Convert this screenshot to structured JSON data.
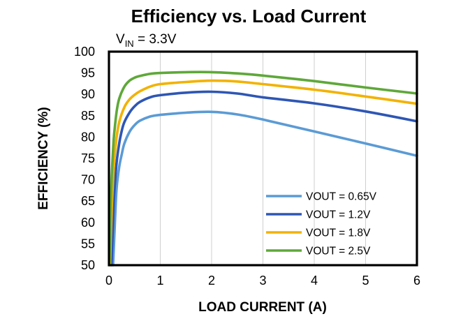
{
  "chart_data": {
    "type": "line",
    "title": "Efficiency vs. Load Current",
    "subtitle": {
      "prefix": "V",
      "subscript": "IN",
      "suffix": " = 3.3V"
    },
    "xlabel": "LOAD CURRENT (A)",
    "ylabel": "EFFICIENCY (%)",
    "xlim": [
      0,
      6
    ],
    "ylim": [
      50,
      100
    ],
    "xticks": [
      "0",
      "1",
      "2",
      "3",
      "4",
      "5",
      "6"
    ],
    "yticks": [
      "50",
      "55",
      "60",
      "65",
      "70",
      "75",
      "80",
      "85",
      "90",
      "95",
      "100"
    ],
    "grid": "vertical",
    "legend_position": "bottom-right",
    "series": [
      {
        "name": "VOUT = 0.65V",
        "color": "#5B9BD5",
        "x": [
          0.08,
          0.12,
          0.15,
          0.2,
          0.25,
          0.3,
          0.4,
          0.5,
          0.6,
          0.8,
          1.0,
          1.5,
          2.0,
          2.5,
          3.0,
          4.0,
          5.0,
          6.0
        ],
        "y": [
          50,
          61,
          68,
          73,
          76,
          78.5,
          81.2,
          82.8,
          83.8,
          84.8,
          85.2,
          85.7,
          85.9,
          85.3,
          84.1,
          81.3,
          78.5,
          75.6
        ]
      },
      {
        "name": "VOUT = 1.2V",
        "color": "#2E56B4",
        "x": [
          0.05,
          0.08,
          0.1,
          0.15,
          0.2,
          0.25,
          0.3,
          0.4,
          0.5,
          0.6,
          0.8,
          1.0,
          1.5,
          2.0,
          2.5,
          3.0,
          4.0,
          5.0,
          6.0
        ],
        "y": [
          50,
          60,
          66,
          74,
          78.5,
          81.5,
          83.5,
          85.7,
          87.2,
          88.2,
          89.3,
          89.8,
          90.4,
          90.6,
          90.2,
          89.3,
          87.9,
          86,
          83.7
        ]
      },
      {
        "name": "VOUT = 1.8V",
        "color": "#F2B200",
        "x": [
          0.02,
          0.05,
          0.08,
          0.1,
          0.15,
          0.2,
          0.3,
          0.4,
          0.5,
          0.6,
          0.8,
          1.0,
          1.5,
          2.0,
          2.5,
          3.0,
          4.0,
          5.0,
          6.0
        ],
        "y": [
          50,
          62,
          70,
          74,
          80,
          83.5,
          87,
          88.8,
          89.9,
          90.7,
          91.8,
          92.4,
          92.9,
          93.2,
          93,
          92.4,
          91.1,
          89.5,
          87.8
        ]
      },
      {
        "name": "VOUT = 2.5V",
        "color": "#5FA839",
        "x": [
          0.01,
          0.03,
          0.05,
          0.08,
          0.1,
          0.15,
          0.2,
          0.3,
          0.4,
          0.5,
          0.6,
          0.8,
          1.0,
          1.5,
          2.0,
          2.5,
          3.0,
          4.0,
          5.0,
          6.0
        ],
        "y": [
          50,
          62,
          70,
          77,
          80.5,
          86,
          89,
          91.8,
          93.2,
          93.9,
          94.3,
          94.8,
          95,
          95.2,
          95.2,
          94.9,
          94.4,
          93.1,
          91.6,
          90.2
        ]
      }
    ]
  }
}
